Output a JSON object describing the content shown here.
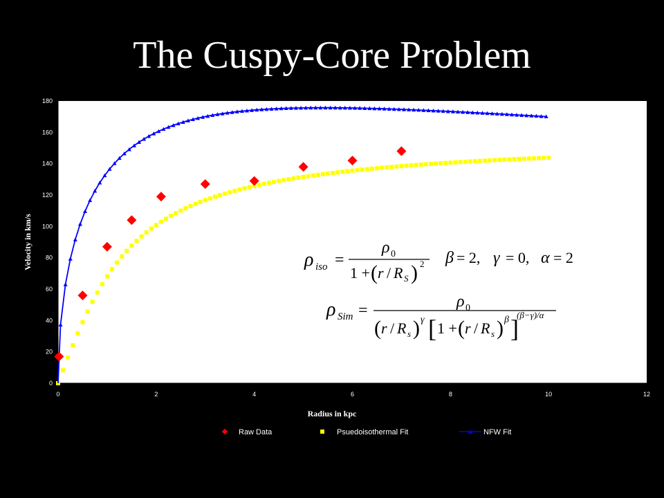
{
  "slide": {
    "title": "The Cuspy-Core Problem"
  },
  "chart_data": {
    "type": "scatter",
    "xlabel": "Radius in kpc",
    "ylabel": "Velocity in km/s",
    "xlim": [
      0,
      12
    ],
    "ylim": [
      0,
      180
    ],
    "xticks": [
      0,
      2,
      4,
      6,
      8,
      10,
      12
    ],
    "yticks": [
      0,
      20,
      40,
      60,
      80,
      100,
      120,
      140,
      160,
      180
    ],
    "grid": false,
    "legend_position": "bottom",
    "series": [
      {
        "name": "Raw Data",
        "color": "#ff0000",
        "marker": "diamond",
        "x": [
          0.02,
          0.5,
          1.0,
          1.5,
          2.1,
          3.0,
          4.0,
          5.0,
          6.0,
          7.0
        ],
        "y": [
          17,
          56,
          87,
          104,
          119,
          127,
          129,
          138,
          142,
          148
        ]
      },
      {
        "name": "Psuedoisothermal Fit",
        "color": "#ffff00",
        "marker": "square",
        "x_start": 0,
        "x_step": 0.1,
        "x_end": 10,
        "v_inf": 157,
        "r_s": 1.1
      },
      {
        "name": "NFW Fit",
        "color": "#0000ff",
        "marker": "triangle-line",
        "x_start": 0.05,
        "x_step": 0.1,
        "x_end": 10,
        "v_200": 170,
        "r_s": 2.5
      }
    ]
  },
  "equations": {
    "iso": {
      "rho": "ρ",
      "sub": "iso",
      "eq": "=",
      "rho0": "ρ",
      "zero": "0",
      "one_plus": "1 +",
      "lp": "(",
      "r": "r",
      "slash": "/",
      "R": "R",
      "S": "S",
      "rp": ")",
      "pow": "2"
    },
    "params": {
      "beta": "β",
      "beta_val": "= 2,",
      "gamma": "γ",
      "gamma_val": "= 0,",
      "alpha": "α",
      "alpha_val": "= 2"
    },
    "sim": {
      "rho": "ρ",
      "sub": "Sim",
      "eq": "=",
      "rho0": "ρ",
      "zero": "0",
      "lp1": "(",
      "r1": "r",
      "slash1": "/",
      "R1": "R",
      "s1": "s",
      "rp1": ")",
      "gamma": "γ",
      "lb": "[",
      "one_plus": "1 +",
      "lp2": "(",
      "r2": "r",
      "slash2": "/",
      "R2": "R",
      "s2": "s",
      "rp2": ")",
      "beta": "β",
      "rb": "]",
      "exp": "(β−γ)/α"
    }
  }
}
